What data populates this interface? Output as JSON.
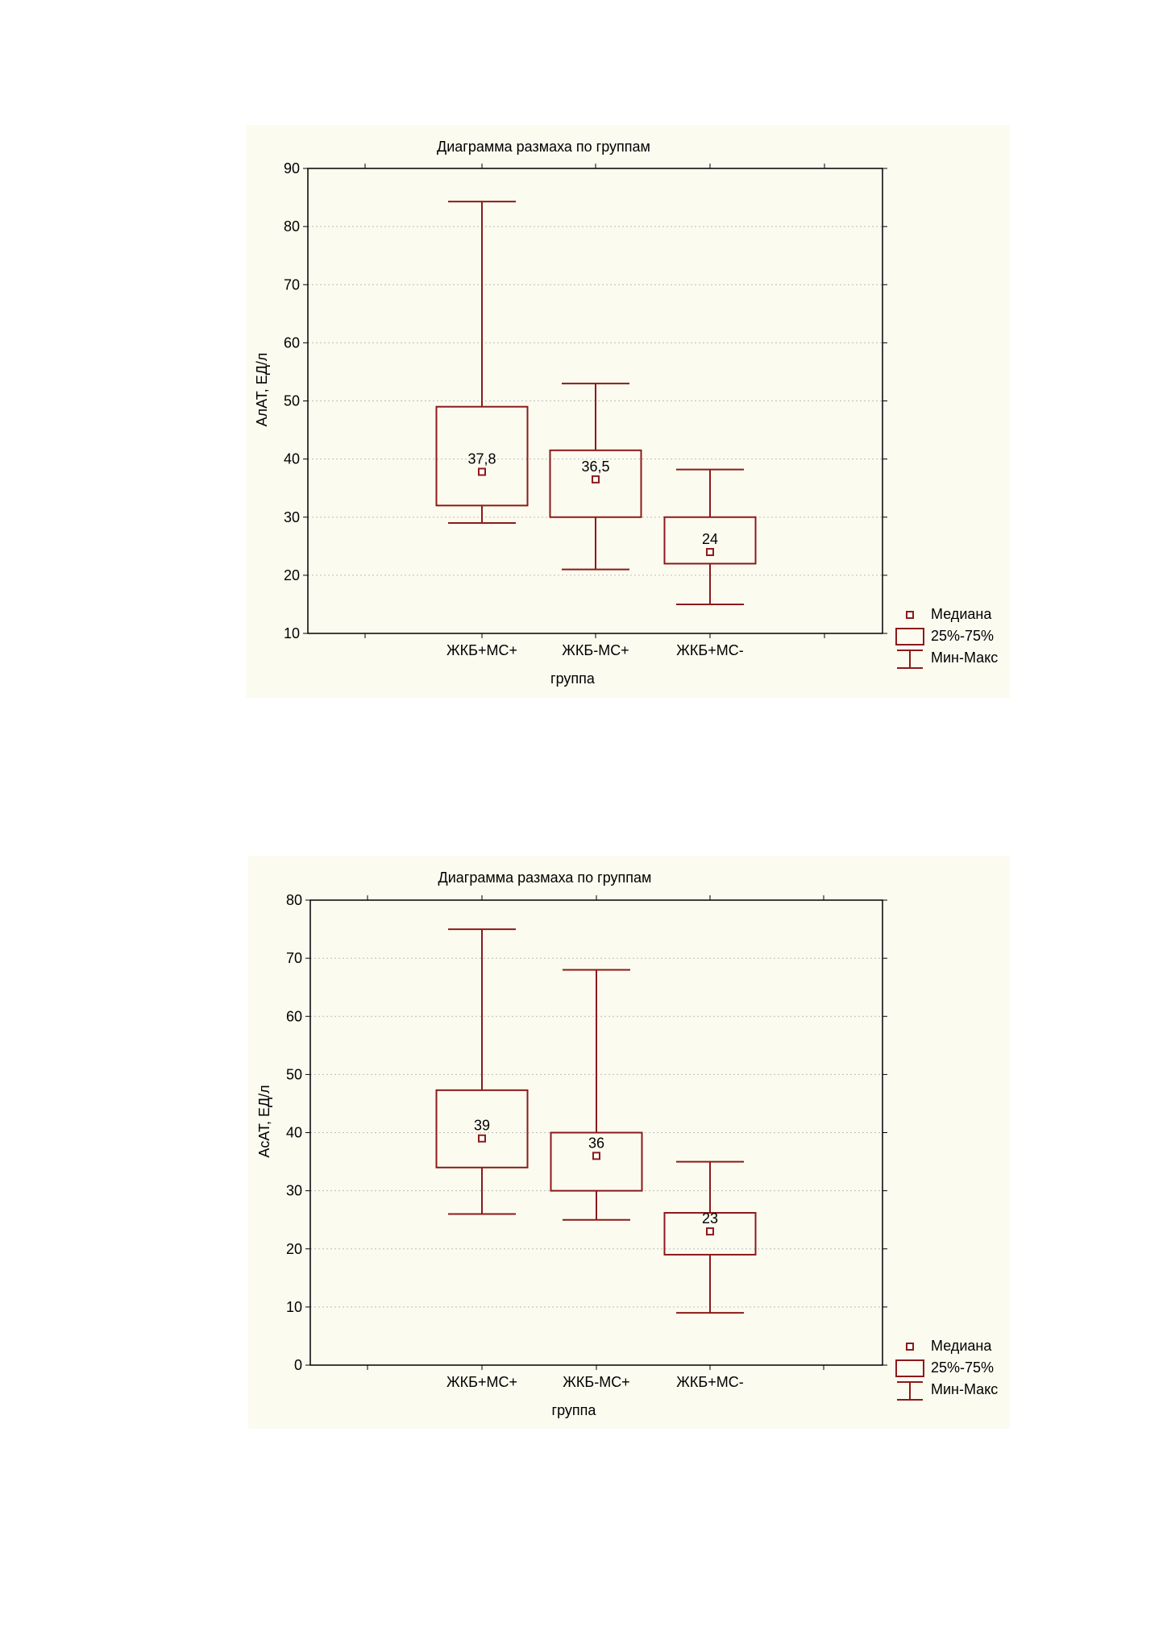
{
  "colors": {
    "box": "#8b1a1a",
    "frame": "#000000",
    "grid": "#bdbdbd",
    "panel_bg": "#fcfbf0"
  },
  "legend": {
    "median": "Медиана",
    "iqr": "25%-75%",
    "range": "Мин-Макс"
  },
  "chart_data": [
    {
      "type": "boxplot",
      "title": "Диаграмма размаха по группам",
      "xlabel": "группа",
      "ylabel": "АлАТ, ЕД/л",
      "ylim": [
        10,
        90
      ],
      "yticks": [
        10,
        20,
        30,
        40,
        50,
        60,
        70,
        80,
        90
      ],
      "grid": true,
      "legend_position": "bottom-right",
      "categories": [
        "ЖКБ+МС+",
        "ЖКБ-МС+",
        "ЖКБ+МС-"
      ],
      "boxes": [
        {
          "min": 29,
          "q1": 32,
          "median": 37.8,
          "q3": 49,
          "max": 84.3,
          "label": "37,8"
        },
        {
          "min": 21,
          "q1": 30,
          "median": 36.5,
          "q3": 41.5,
          "max": 53,
          "label": "36,5"
        },
        {
          "min": 15,
          "q1": 22,
          "median": 24,
          "q3": 30,
          "max": 38.2,
          "label": "24"
        }
      ]
    },
    {
      "type": "boxplot",
      "title": "Диаграмма размаха по группам",
      "xlabel": "группа",
      "ylabel": "АсАТ, ЕД/л",
      "ylim": [
        0,
        80
      ],
      "yticks": [
        0,
        10,
        20,
        30,
        40,
        50,
        60,
        70,
        80
      ],
      "grid": true,
      "legend_position": "bottom-right",
      "categories": [
        "ЖКБ+МС+",
        "ЖКБ-МС+",
        "ЖКБ+МС-"
      ],
      "boxes": [
        {
          "min": 26,
          "q1": 34,
          "median": 39,
          "q3": 47.3,
          "max": 75,
          "label": "39"
        },
        {
          "min": 25,
          "q1": 30,
          "median": 36,
          "q3": 40,
          "max": 68,
          "label": "36"
        },
        {
          "min": 9,
          "q1": 19,
          "median": 23,
          "q3": 26.2,
          "max": 35,
          "label": "23"
        }
      ]
    }
  ]
}
